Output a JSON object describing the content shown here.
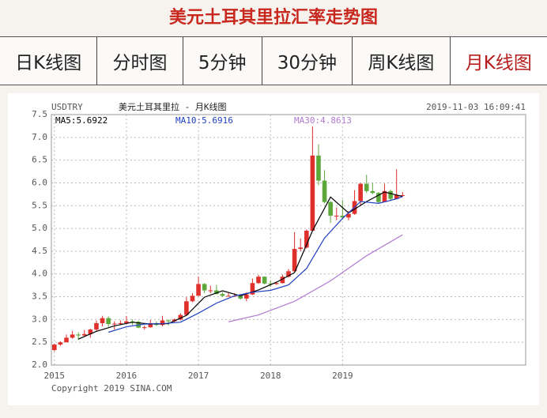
{
  "title": "美元土耳其里拉汇率走势图",
  "tabs": [
    "日K线图",
    "分时图",
    "5分钟",
    "30分钟",
    "周K线图",
    "月K线图"
  ],
  "active_tab": 5,
  "chart_data": {
    "type": "candlestick",
    "symbol": "USDTRY",
    "title": "美元土耳其里拉 - 月K线图",
    "timestamp": "2019-11-03 16:09:41",
    "copyright": "Copyright 2019 SINA.COM",
    "up_color": "#e0302c",
    "down_color": "#5da83a",
    "x": [
      0,
      1,
      2,
      3,
      4,
      5,
      6,
      7,
      8,
      9,
      10,
      11,
      12,
      13,
      14,
      15,
      16,
      17,
      18,
      19,
      20,
      21,
      22,
      23,
      24,
      25,
      26,
      27,
      28,
      29,
      30,
      31,
      32,
      33,
      34,
      35,
      36,
      37,
      38,
      39,
      40,
      41,
      42,
      43,
      44,
      45,
      46,
      47,
      48,
      49,
      50,
      51,
      52,
      53,
      54,
      55,
      56,
      57,
      58
    ],
    "open": [
      2.33,
      2.45,
      2.5,
      2.6,
      2.67,
      2.65,
      2.68,
      2.78,
      2.92,
      3.03,
      2.9,
      2.91,
      2.92,
      2.96,
      2.95,
      2.82,
      2.83,
      2.92,
      2.88,
      2.98,
      2.96,
      3.0,
      3.1,
      3.4,
      3.52,
      3.78,
      3.64,
      3.64,
      3.56,
      3.52,
      3.52,
      3.52,
      3.46,
      3.55,
      3.8,
      3.94,
      3.79,
      3.78,
      3.8,
      3.94,
      4.06,
      4.55,
      4.58,
      4.95,
      6.6,
      6.05,
      5.58,
      5.28,
      5.28,
      5.24,
      5.32,
      5.6,
      5.98,
      5.82,
      5.78,
      5.58,
      5.82,
      5.65,
      5.73
    ],
    "high": [
      2.47,
      2.52,
      2.67,
      2.75,
      2.72,
      2.77,
      2.8,
      2.98,
      3.08,
      3.07,
      2.96,
      2.98,
      3.08,
      3.0,
      2.97,
      2.87,
      2.99,
      2.96,
      3.08,
      3.0,
      3.02,
      3.14,
      3.49,
      3.58,
      3.94,
      3.8,
      3.74,
      3.76,
      3.6,
      3.58,
      3.58,
      3.53,
      3.6,
      3.9,
      3.98,
      3.95,
      3.86,
      3.83,
      3.99,
      4.11,
      4.92,
      4.78,
      4.98,
      7.24,
      6.85,
      6.28,
      5.6,
      5.46,
      5.62,
      5.38,
      5.84,
      6.0,
      6.18,
      6.0,
      5.8,
      5.98,
      5.85,
      6.3,
      5.8
    ],
    "low": [
      2.3,
      2.42,
      2.5,
      2.58,
      2.55,
      2.63,
      2.6,
      2.75,
      2.85,
      2.84,
      2.78,
      2.88,
      2.9,
      2.88,
      2.81,
      2.78,
      2.82,
      2.86,
      2.85,
      2.87,
      2.94,
      2.98,
      3.08,
      3.38,
      3.52,
      3.58,
      3.58,
      3.55,
      3.5,
      3.5,
      3.5,
      3.44,
      3.4,
      3.54,
      3.78,
      3.77,
      3.72,
      3.76,
      3.79,
      3.92,
      4.05,
      4.5,
      4.56,
      4.95,
      5.95,
      5.55,
      5.12,
      5.18,
      5.2,
      5.18,
      5.3,
      5.5,
      5.78,
      5.75,
      5.55,
      5.58,
      5.6,
      5.65,
      5.7
    ],
    "close": [
      2.45,
      2.5,
      2.6,
      2.67,
      2.65,
      2.68,
      2.78,
      2.92,
      3.03,
      2.9,
      2.91,
      2.92,
      2.96,
      2.95,
      2.82,
      2.83,
      2.92,
      2.88,
      2.98,
      2.96,
      3.0,
      3.1,
      3.4,
      3.52,
      3.78,
      3.64,
      3.64,
      3.56,
      3.52,
      3.52,
      3.52,
      3.46,
      3.55,
      3.8,
      3.94,
      3.79,
      3.78,
      3.8,
      3.94,
      4.06,
      4.55,
      4.58,
      4.95,
      6.6,
      6.05,
      5.58,
      5.28,
      5.28,
      5.24,
      5.32,
      5.6,
      5.98,
      5.82,
      5.78,
      5.58,
      5.82,
      5.65,
      5.73,
      5.73
    ],
    "series": [
      {
        "name": "MA5:5.6922",
        "color": "#000000",
        "x": [
          4,
          7,
          10,
          13,
          16,
          19,
          22,
          25,
          28,
          31,
          34,
          37,
          40,
          43,
          46,
          49,
          52,
          55,
          58
        ],
        "values": [
          2.57,
          2.74,
          2.86,
          2.94,
          2.9,
          2.91,
          3.09,
          3.49,
          3.63,
          3.52,
          3.65,
          3.82,
          4.03,
          4.95,
          5.69,
          5.34,
          5.59,
          5.8,
          5.7
        ]
      },
      {
        "name": "MA10:5.6916",
        "color": "#2040c0",
        "x": [
          9,
          12,
          15,
          18,
          21,
          24,
          27,
          30,
          33,
          36,
          39,
          42,
          45,
          48,
          51,
          54,
          57,
          58
        ],
        "values": [
          2.72,
          2.84,
          2.9,
          2.91,
          2.94,
          3.14,
          3.36,
          3.52,
          3.6,
          3.64,
          3.76,
          4.12,
          4.79,
          5.22,
          5.59,
          5.55,
          5.65,
          5.7
        ]
      },
      {
        "name": "MA30:4.8613",
        "color": "#b07ad0",
        "x": [
          29,
          34,
          40,
          46,
          52,
          58
        ],
        "values": [
          2.95,
          3.1,
          3.4,
          3.85,
          4.4,
          4.86
        ]
      }
    ],
    "xlim": [
      -0.5,
      78.5
    ],
    "xticks": [
      {
        "value": 0,
        "label": "2015"
      },
      {
        "value": 12,
        "label": "2016"
      },
      {
        "value": 24,
        "label": "2017"
      },
      {
        "value": 36,
        "label": "2018"
      },
      {
        "value": 48,
        "label": "2019"
      }
    ],
    "ylim": [
      2,
      7.5
    ],
    "yticks": [
      {
        "value": 2,
        "label": "2.0"
      },
      2.5,
      {
        "value": 3,
        "label": "3.0"
      },
      3.5,
      {
        "value": 4,
        "label": "4.0"
      },
      4.5,
      {
        "value": 5,
        "label": "5.0"
      },
      5.5,
      {
        "value": 6,
        "label": "6.0"
      },
      6.5,
      {
        "value": 7,
        "label": "7.0"
      },
      7.5
    ],
    "grid": true
  }
}
